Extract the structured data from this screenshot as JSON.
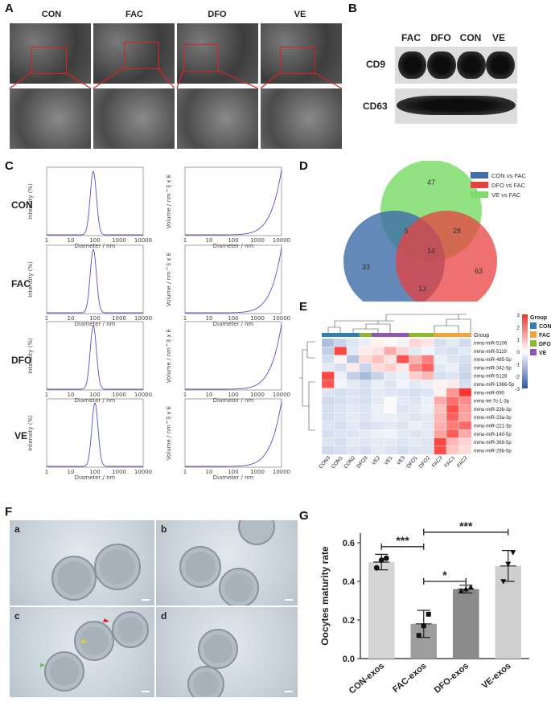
{
  "panels": {
    "A": "A",
    "B": "B",
    "C": "C",
    "D": "D",
    "E": "E",
    "F": "F",
    "G": "G"
  },
  "em_groups": [
    "CON",
    "FAC",
    "DFO",
    "VE"
  ],
  "blot": {
    "lanes": [
      "FAC",
      "DFO",
      "CON",
      "VE"
    ],
    "rows": [
      "CD9",
      "CD63"
    ]
  },
  "nta": {
    "groups": [
      "CON",
      "FAC",
      "DFO",
      "VE"
    ],
    "x_ticks": [
      "1",
      "10",
      "100",
      "1000",
      "10000"
    ],
    "xlabel": "Diameter / nm",
    "left_ylabel": "Intensity (%)",
    "right_ylabel": "Volume / nm^3 x E"
  },
  "venn": {
    "legend": [
      {
        "name": "CON vs FAC",
        "color": "#3f6fa8"
      },
      {
        "name": "DFO vs FAC",
        "color": "#e84040"
      },
      {
        "name": "VE vs FAC",
        "color": "#7fdc6c"
      }
    ],
    "regions": {
      "ve_only": "47",
      "con_ve": "5",
      "dfo_ve": "28",
      "all": "14",
      "con_only": "33",
      "con_dfo": "13",
      "dfo_only": "63"
    }
  },
  "heatmap": {
    "group_title": "Group",
    "rows": [
      "mmu-miR-5106",
      "mmu-miR-5119",
      "mmu-miR-485-5p",
      "mmu-miR-342-5p",
      "mmu-miR-5128",
      "mmu-miR-1966-5p",
      "mmu-miR-690",
      "mmu-let-7c-1-3p",
      "mmu-miR-23b-3p",
      "mmu-miR-23a-3p",
      "mmu-miR-221-3p",
      "mmu-miR-140-5p",
      "mmu-miR-369-5p",
      "mmu-miR-26b-5p"
    ],
    "cols": [
      "CON3",
      "CON1",
      "CON2",
      "DFO3",
      "VE2",
      "VE1",
      "VE3",
      "DFO1",
      "DFO2",
      "FAC3",
      "FAC1",
      "FAC2"
    ],
    "scale_ticks": [
      "3",
      "2",
      "1",
      "0",
      "-1",
      "-2",
      "-3"
    ],
    "legend": [
      {
        "name": "CON",
        "color": "#2f7fb5"
      },
      {
        "name": "FAC",
        "color": "#f2a43a"
      },
      {
        "name": "DFO",
        "color": "#8fb82f"
      },
      {
        "name": "VE",
        "color": "#8f57b0"
      }
    ]
  },
  "micrographs": [
    "a",
    "b",
    "c",
    "d"
  ],
  "chart_data": {
    "type": "bar",
    "categories": [
      "CON-exos",
      "FAC-exos",
      "DFO-exos",
      "VE-exos"
    ],
    "values": [
      0.5,
      0.18,
      0.36,
      0.48
    ],
    "errors": [
      0.04,
      0.07,
      0.02,
      0.08
    ],
    "points": [
      [
        0.47,
        0.51,
        0.52
      ],
      [
        0.12,
        0.17,
        0.23
      ],
      [
        0.35,
        0.36,
        0.37
      ],
      [
        0.4,
        0.49,
        0.55
      ]
    ],
    "bar_colors": [
      "#d4d4d4",
      "#9e9e9e",
      "#8a8a8a",
      "#cfcfcf"
    ],
    "ylabel": "Oocytes maturity rate",
    "yticks": [
      "0.0",
      "0.2",
      "0.4",
      "0.6"
    ],
    "ylim": [
      0,
      0.65
    ],
    "significance": [
      {
        "from": 0,
        "to": 1,
        "label": "***"
      },
      {
        "from": 1,
        "to": 2,
        "label": "*"
      },
      {
        "from": 1,
        "to": 3,
        "label": "***"
      }
    ]
  }
}
